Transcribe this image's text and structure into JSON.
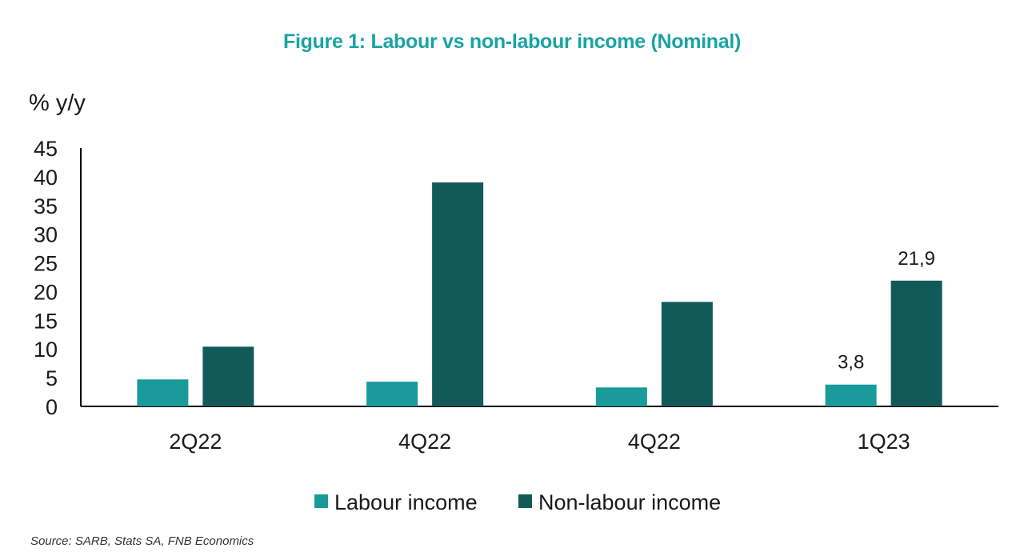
{
  "chart_data": {
    "type": "bar",
    "title": "Figure 1: Labour vs non-labour income (Nominal)",
    "ylabel": "% y/y",
    "xlabel": "",
    "categories": [
      "2Q22",
      "4Q22",
      "4Q22",
      "1Q23"
    ],
    "series": [
      {
        "name": "Labour income",
        "color": "#1a9a9a",
        "values": [
          4.7,
          4.3,
          3.3,
          3.8
        ]
      },
      {
        "name": "Non-labour income",
        "color": "#125a5a",
        "values": [
          10.4,
          39.0,
          18.2,
          21.9
        ]
      }
    ],
    "ylim": [
      0,
      45
    ],
    "yticks": [
      0,
      5,
      10,
      15,
      20,
      25,
      30,
      35,
      40,
      45
    ],
    "data_labels": [
      {
        "series": 0,
        "index": 3,
        "text": "3,8"
      },
      {
        "series": 1,
        "index": 3,
        "text": "21,9"
      }
    ],
    "legend_position": "bottom",
    "grid": false,
    "title_color": "#1aa3a3"
  },
  "source": "Source: SARB, Stats SA, FNB Economics"
}
